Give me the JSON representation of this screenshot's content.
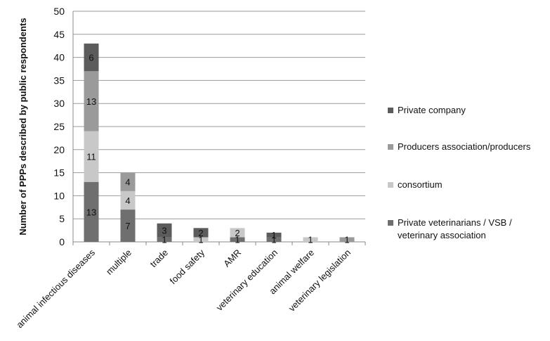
{
  "chart_data": {
    "type": "bar",
    "stacked": true,
    "title": "",
    "xlabel": "",
    "ylabel": "Number of PPPs described by public respondents",
    "ylim": [
      0,
      50
    ],
    "yticks": [
      0,
      5,
      10,
      15,
      20,
      25,
      30,
      35,
      40,
      45,
      50
    ],
    "grid": true,
    "legend_position": "right",
    "categories": [
      "animal infectious diseases",
      "multiple",
      "trade",
      "food safety",
      "AMR",
      "veterinary education",
      "animal welfare",
      "veterinary legislation"
    ],
    "series": [
      {
        "name": "Private veterinarians / VSB / veterinary association",
        "color": "#6f6f6f",
        "values": [
          13,
          7,
          1,
          0,
          1,
          1,
          0,
          0
        ],
        "labels": [
          "13",
          "7",
          "1",
          "",
          "1",
          "1",
          "",
          ""
        ]
      },
      {
        "name": "consortium",
        "color": "#c8c8c8",
        "values": [
          11,
          4,
          0,
          1,
          2,
          0,
          1,
          0
        ],
        "labels": [
          "11",
          "4",
          "",
          "1",
          "2",
          "",
          "1",
          ""
        ]
      },
      {
        "name": "Producers association/producers",
        "color": "#9a9a9a",
        "values": [
          13,
          4,
          0,
          0,
          0,
          0,
          0,
          1
        ],
        "labels": [
          "13",
          "4",
          "",
          "",
          "",
          "",
          "",
          "1"
        ]
      },
      {
        "name": "Private company",
        "color": "#5c5c5c",
        "values": [
          6,
          0,
          3,
          2,
          0,
          1,
          0,
          0
        ],
        "labels": [
          "6",
          "",
          "3",
          "2",
          "",
          "1",
          "",
          ""
        ]
      }
    ],
    "legend_order": [
      "Private company",
      "Producers association/producers",
      "consortium",
      "Private veterinarians / VSB / veterinary association"
    ]
  }
}
